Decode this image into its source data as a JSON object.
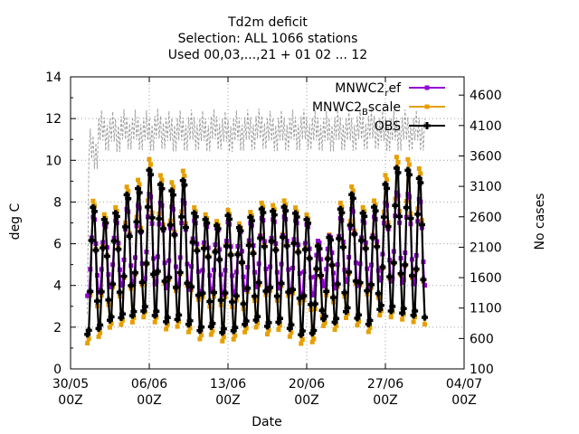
{
  "chart_data": {
    "type": "line",
    "title": [
      "Td2m deficit",
      "Selection: ALL   1066 stations",
      "Used 00,03,...,21 + 01 02 ... 12"
    ],
    "xlabel": "Date",
    "ylabel": "deg C",
    "y2label": "No cases",
    "ylim": [
      0,
      14
    ],
    "y2lim": [
      100,
      4900
    ],
    "yticks": [
      0,
      2,
      4,
      6,
      8,
      10,
      12,
      14
    ],
    "y2ticks": [
      100,
      600,
      1100,
      1600,
      2100,
      2600,
      3100,
      3600,
      4100,
      4600
    ],
    "xlim_days": [
      0,
      35
    ],
    "xticks": [
      {
        "day": 0,
        "line1": "30/05",
        "line2": "00Z"
      },
      {
        "day": 7,
        "line1": "06/06",
        "line2": "00Z"
      },
      {
        "day": 14,
        "line1": "13/06",
        "line2": "00Z"
      },
      {
        "day": 21,
        "line1": "20/06",
        "line2": "00Z"
      },
      {
        "day": 28,
        "line1": "27/06",
        "line2": "00Z"
      },
      {
        "day": 35,
        "line1": "04/07",
        "line2": "00Z"
      }
    ],
    "grid": true,
    "legend_position": "top-right",
    "series_start_day": 1.5,
    "series_end_day": 31.5,
    "series_step_hours": 3,
    "daily_max_obs": [
      7.9,
      7.3,
      7.6,
      8.5,
      8.8,
      9.7,
      9.0,
      8.7,
      9.2,
      7.6,
      7.3,
      7.0,
      7.5,
      6.9,
      7.4,
      7.8,
      7.7,
      7.9,
      7.6,
      7.3,
      6.0,
      6.4,
      7.8,
      8.5,
      7.6,
      7.9,
      9.0,
      9.8,
      9.7,
      9.3,
      9.1
    ],
    "daily_min_obs": [
      1.5,
      1.8,
      2.2,
      2.3,
      2.4,
      2.6,
      2.4,
      2.1,
      2.2,
      2.0,
      1.7,
      1.9,
      1.6,
      1.7,
      2.0,
      2.2,
      1.9,
      2.1,
      1.8,
      1.5,
      1.6,
      2.3,
      2.1,
      2.6,
      2.3,
      2.0,
      2.7,
      2.6,
      2.5,
      2.4,
      2.3
    ],
    "daily_cases": [
      3700,
      4000,
      3980,
      4020,
      4010,
      4000,
      4030,
      3990,
      4000,
      4010,
      3990,
      4020,
      3980,
      4000,
      4010,
      4030,
      3990,
      4000,
      4010,
      4020,
      4000,
      3990,
      4010,
      4000,
      4020,
      4030,
      3990,
      4000,
      4010,
      4000,
      3980
    ],
    "series": [
      {
        "name": "MNWC2_ref",
        "color": "#9400d3",
        "line_width": 1.6,
        "scale": 0.78,
        "offset": 0.9,
        "marker": "square"
      },
      {
        "name": "MNWC2_Bscale",
        "color": "#e69f00",
        "line_width": 1.6,
        "scale": 1.06,
        "offset": -0.05,
        "marker": "square"
      },
      {
        "name": "OBS",
        "color": "#000000",
        "line_width": 2.2,
        "scale": 1.0,
        "offset": 0.0,
        "marker": "plus"
      },
      {
        "name": "",
        "color": "#a0a0a0",
        "line_width": 1.0,
        "dash": "3,2",
        "axis": "y2",
        "marker": "none"
      }
    ]
  },
  "legend": {
    "entries": [
      {
        "main": "MNWC2",
        "sub": "r",
        "tail": "ef",
        "color": "#9400d3"
      },
      {
        "main": "MNWC2",
        "sub": "B",
        "tail": "scale",
        "color": "#e69f00"
      },
      {
        "main": "OBS",
        "sub": "",
        "tail": "",
        "color": "#000000"
      }
    ]
  }
}
